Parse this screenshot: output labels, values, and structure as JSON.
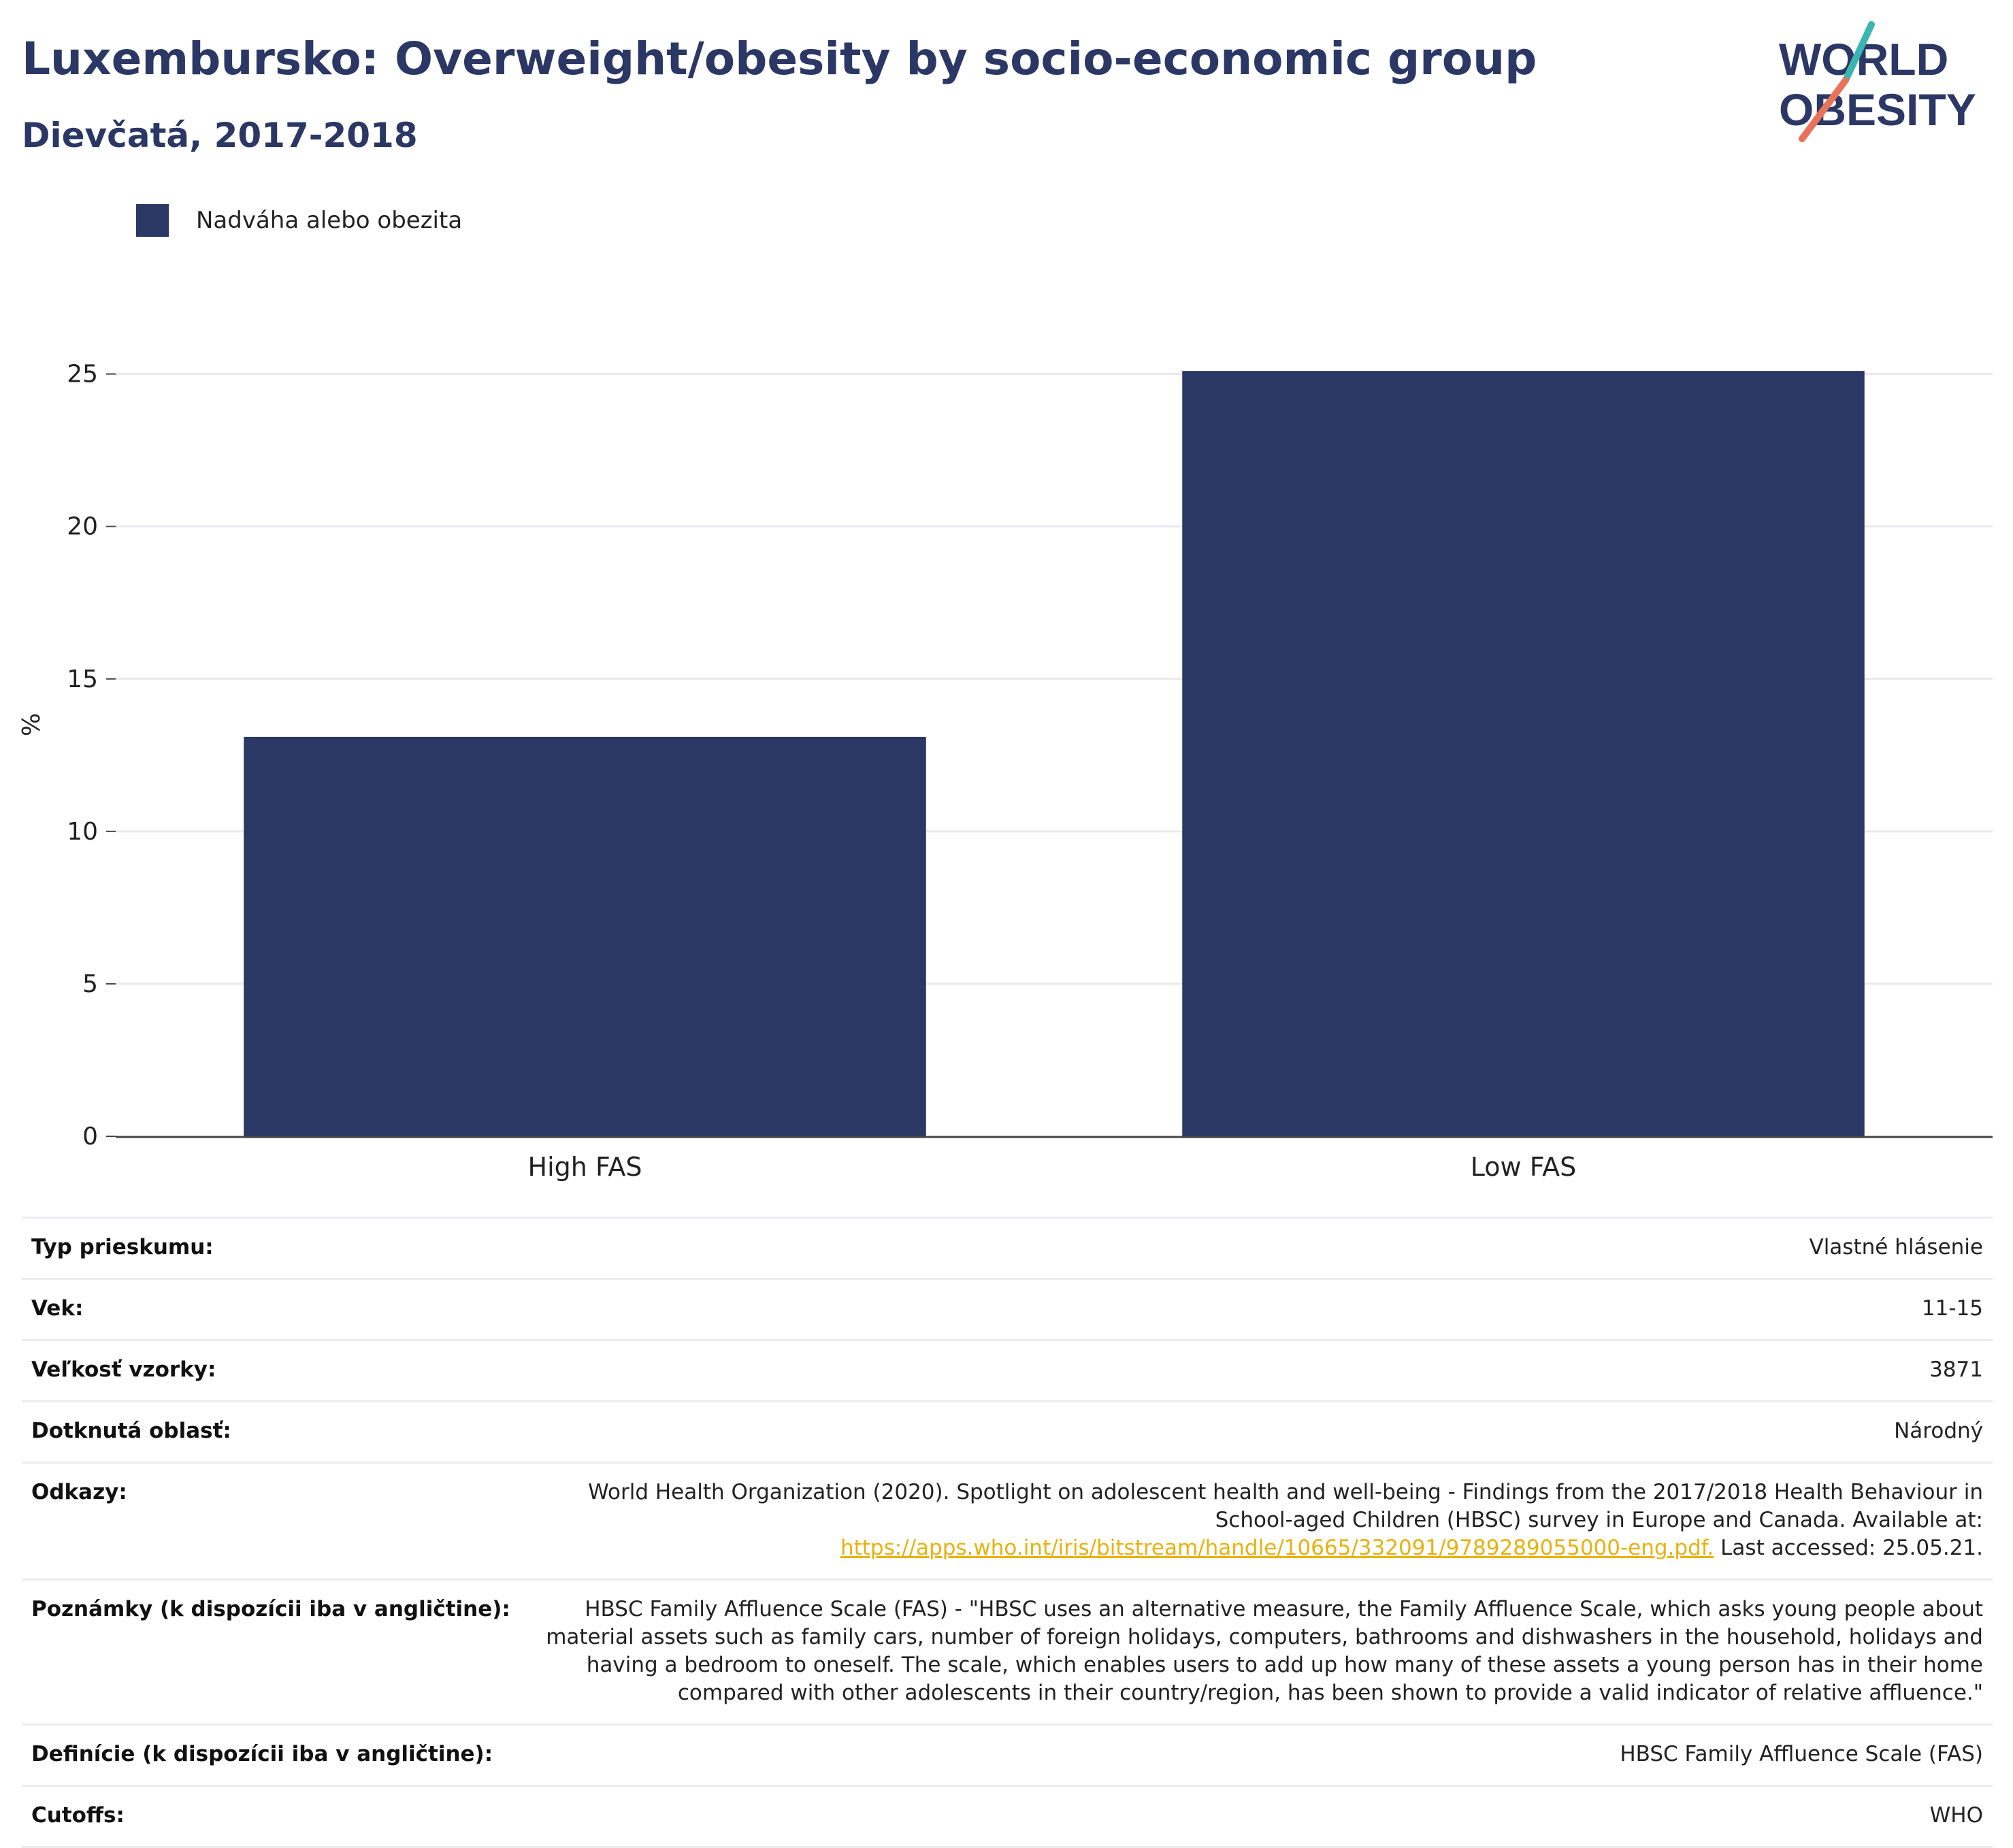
{
  "header": {
    "title": "Luxembursko: Overweight/obesity by socio-economic group",
    "subtitle": "Dievčatá, 2017-2018"
  },
  "logo": {
    "line1": "WORLD",
    "line2": "OBESITY",
    "colors": {
      "text": "#2b3764",
      "slash_teal": "#3ab5b0",
      "slash_coral": "#e8735a"
    }
  },
  "chart_data": {
    "type": "bar",
    "categories": [
      "High FAS",
      "Low FAS"
    ],
    "series": [
      {
        "name": "Nadváha alebo obezita",
        "values": [
          13.1,
          25.1
        ],
        "color": "#2b3764"
      }
    ],
    "ylabel": "%",
    "xlabel": "",
    "ylim": [
      0,
      27
    ],
    "yticks": [
      0,
      5,
      10,
      15,
      20,
      25
    ],
    "grid": true,
    "legend_position": "top-left"
  },
  "info_table": [
    {
      "key": "Typ prieskumu:",
      "value": "Vlastné hlásenie"
    },
    {
      "key": "Vek:",
      "value": "11-15"
    },
    {
      "key": "Veľkosť vzorky:",
      "value": "3871"
    },
    {
      "key": "Dotknutá oblasť:",
      "value": "Národný"
    },
    {
      "key": "Odkazy:",
      "value": "World Health Organization (2020). Spotlight on adolescent health and well-being - Findings from the 2017/2018 Health Behaviour in School-aged Children (HBSC) survey in Europe and Canada. Available at:",
      "link": "https://apps.who.int/iris/bitstream/handle/10665/332091/9789289055000-eng.pdf.",
      "suffix": "Last accessed: 25.05.21."
    },
    {
      "key": "Poznámky (k dispozícii iba v angličtine):",
      "value": "HBSC Family Affluence Scale (FAS) - \"HBSC uses an alternative measure, the Family Affluence Scale, which asks young people about material assets such as family cars, number of foreign holidays, computers, bathrooms and dishwashers in the household, holidays and having a bedroom to oneself. The scale, which enables users to add up how many of these assets a young person has in their home compared with other adolescents in their country/region, has been shown to provide a valid indicator of relative affluence.\""
    },
    {
      "key": "Definície (k dispozícii iba v angličtine):",
      "value": "HBSC Family Affluence Scale (FAS)"
    },
    {
      "key": "Cutoffs:",
      "value": "WHO"
    }
  ]
}
